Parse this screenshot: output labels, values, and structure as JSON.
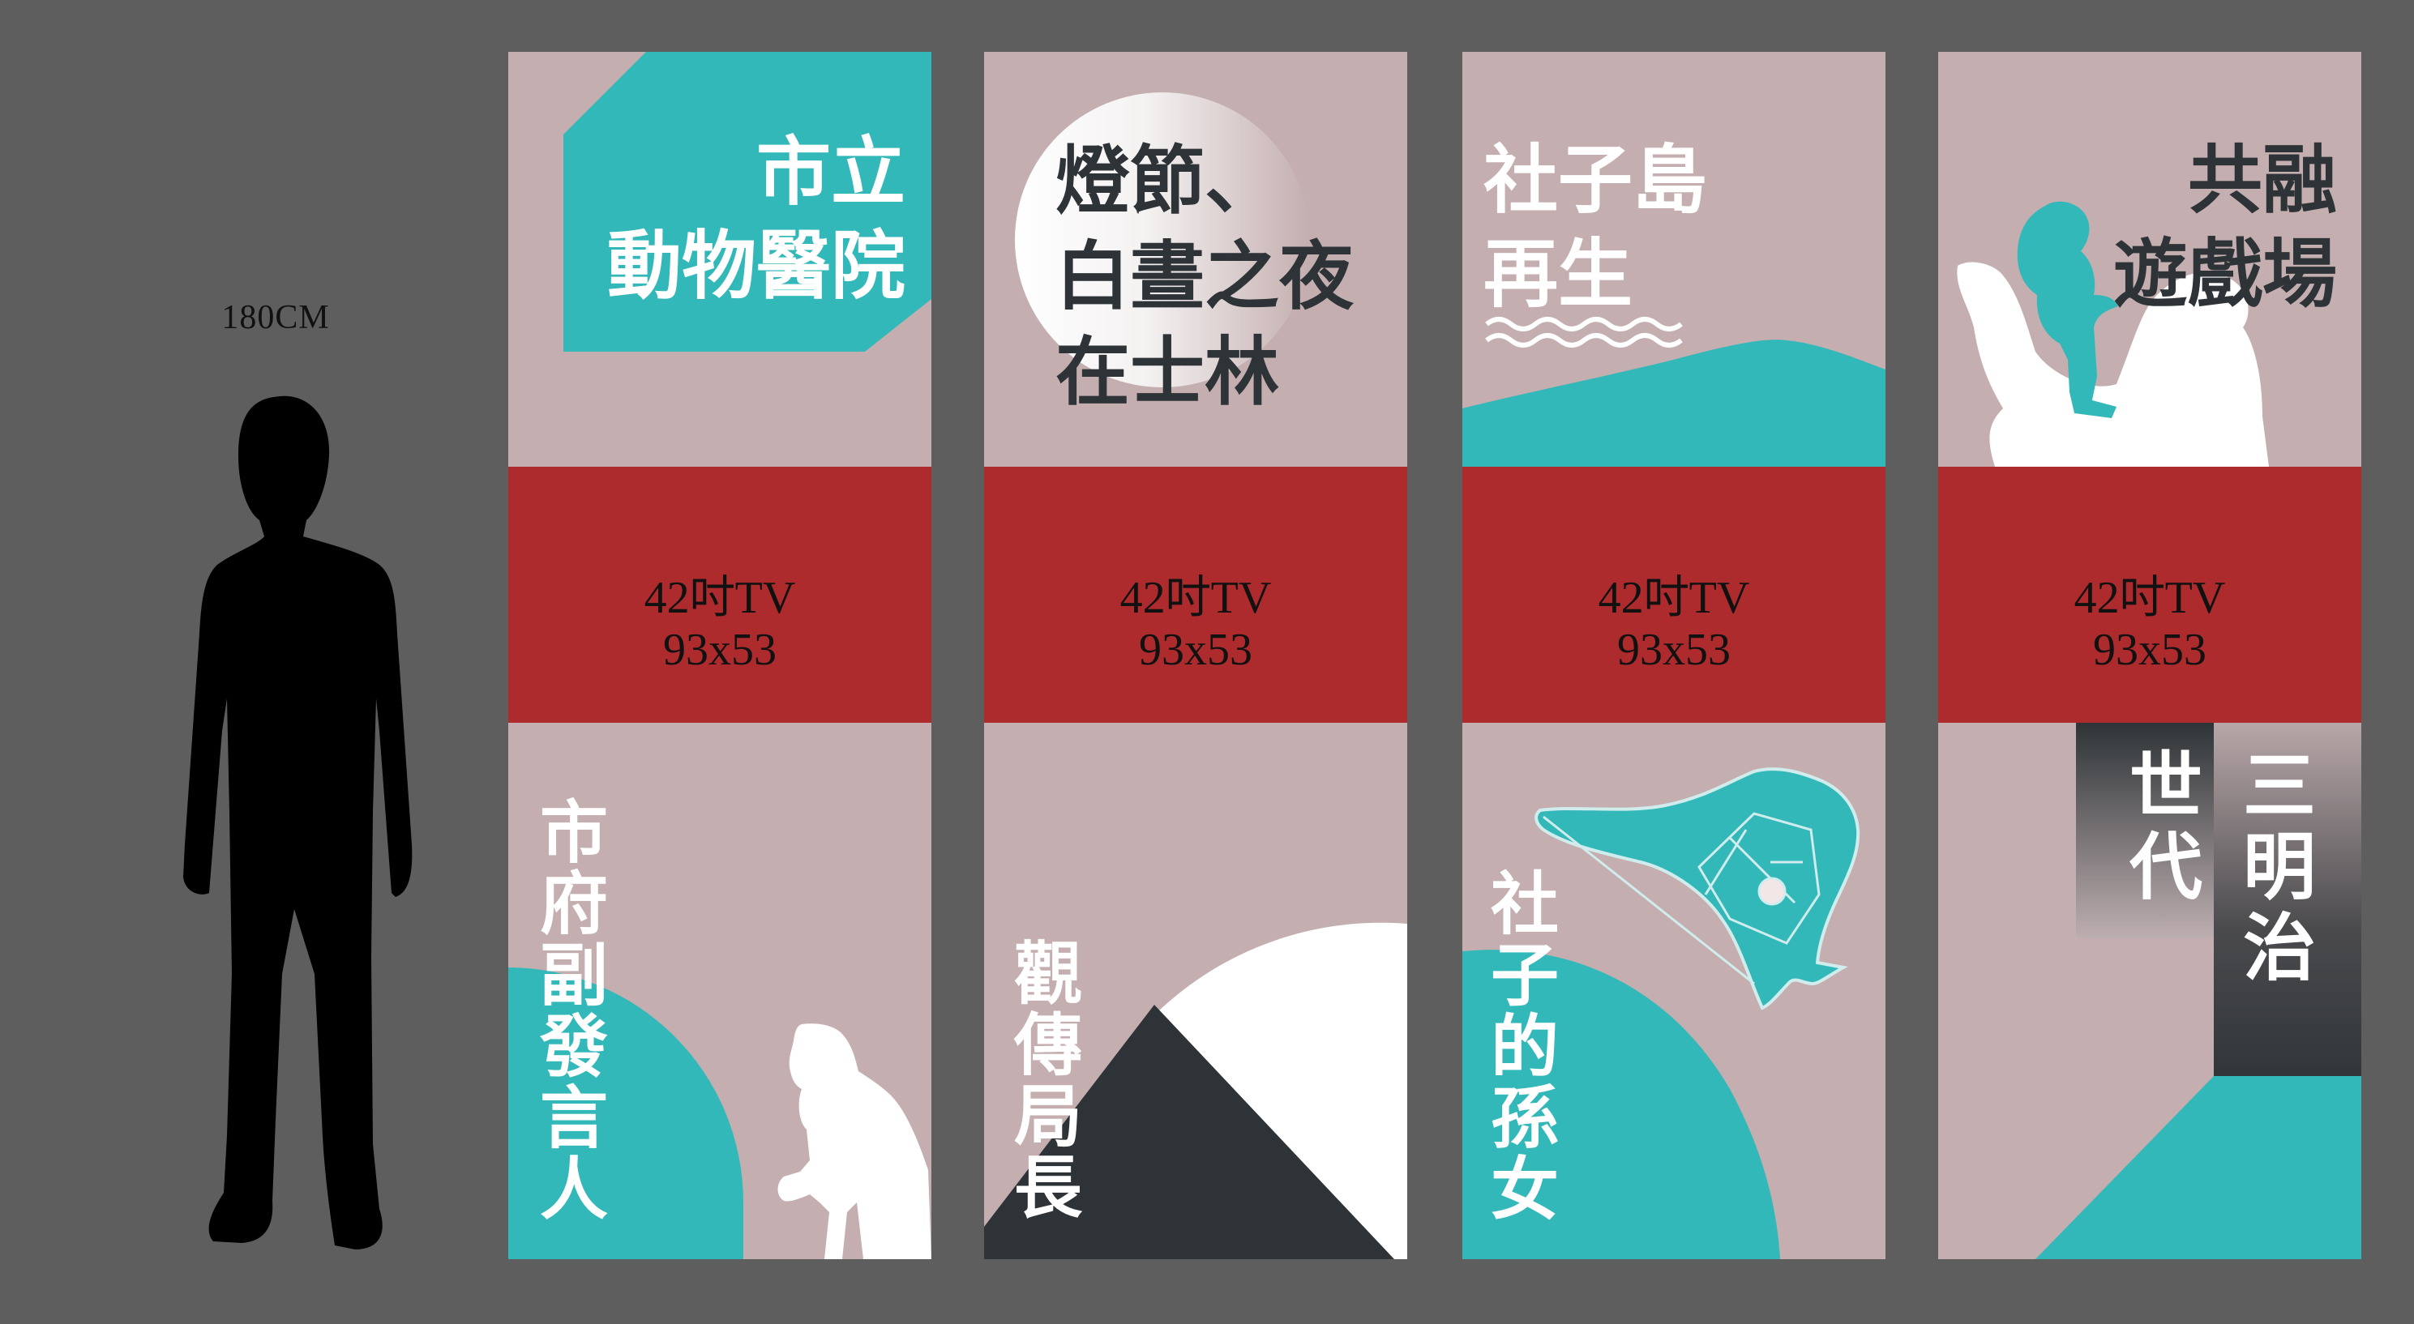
{
  "scale": {
    "label": "180CM"
  },
  "banners": [
    {
      "top_title": [
        "市立",
        "動物醫院"
      ],
      "tv_line1": "42吋TV",
      "tv_line2": "93x53",
      "vertical_text": "市府副發言人"
    },
    {
      "top_title": [
        "燈節、",
        "白晝之夜",
        "在士林"
      ],
      "tv_line1": "42吋TV",
      "tv_line2": "93x53",
      "vertical_text": "觀傳局長"
    },
    {
      "top_title": [
        "社子島",
        "再生"
      ],
      "tv_line1": "42吋TV",
      "tv_line2": "93x53",
      "vertical_text": "社子的孫女"
    },
    {
      "top_title": [
        "共融",
        "遊戲場"
      ],
      "tv_line1": "42吋TV",
      "tv_line2": "93x53",
      "vertical_text_col1": "三明治",
      "vertical_text_col2": "世代"
    }
  ],
  "colors": {
    "background": "#5e5e5e",
    "panel": "#c4aeaf",
    "band": "#ae2b2d",
    "teal": "#33b8b9",
    "dark": "#2d3336",
    "white": "#ffffff"
  }
}
